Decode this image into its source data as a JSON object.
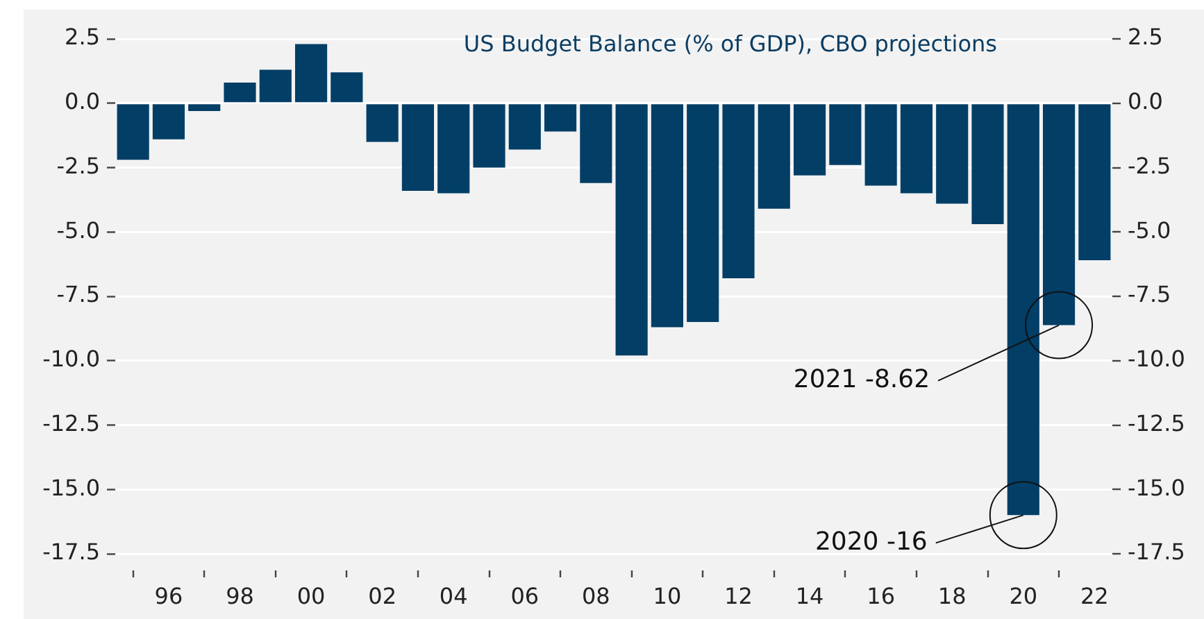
{
  "chart_data": {
    "type": "bar",
    "title": "US Budget Balance (% of GDP), CBO projections",
    "x": [
      1995,
      1996,
      1997,
      1998,
      1999,
      2000,
      2001,
      2002,
      2003,
      2004,
      2005,
      2006,
      2007,
      2008,
      2009,
      2010,
      2011,
      2012,
      2013,
      2014,
      2015,
      2016,
      2017,
      2018,
      2019,
      2020,
      2021,
      2022
    ],
    "values": [
      -2.2,
      -1.4,
      -0.3,
      0.8,
      1.3,
      2.3,
      1.2,
      -1.5,
      -3.4,
      -3.5,
      -2.5,
      -1.8,
      -1.1,
      -3.1,
      -9.8,
      -8.7,
      -8.5,
      -6.8,
      -4.1,
      -2.8,
      -2.4,
      -3.2,
      -3.5,
      -3.9,
      -4.7,
      -16,
      -8.62,
      -6.1
    ],
    "color": "#023e66",
    "xlim": [
      1994.5,
      2022.5
    ],
    "xticks": [
      {
        "value": 1996,
        "label": "96"
      },
      {
        "value": 1998,
        "label": "98"
      },
      {
        "value": 2000,
        "label": "00"
      },
      {
        "value": 2002,
        "label": "02"
      },
      {
        "value": 2004,
        "label": "04"
      },
      {
        "value": 2006,
        "label": "06"
      },
      {
        "value": 2008,
        "label": "08"
      },
      {
        "value": 2010,
        "label": "10"
      },
      {
        "value": 2012,
        "label": "12"
      },
      {
        "value": 2014,
        "label": "14"
      },
      {
        "value": 2016,
        "label": "16"
      },
      {
        "value": 2018,
        "label": "18"
      },
      {
        "value": 2020,
        "label": "20"
      },
      {
        "value": 2022,
        "label": "22"
      }
    ],
    "ylim": [
      -17.5,
      2.5
    ],
    "yticks": [
      2.5,
      {
        "value": 0,
        "label": "0.0"
      },
      -2.5,
      {
        "value": -5,
        "label": "-5.0"
      },
      -7.5,
      {
        "value": -10,
        "label": "-10.0"
      },
      -12.5,
      {
        "value": -15,
        "label": "-15.0"
      },
      -17.5
    ],
    "y2lim": [
      -17.5,
      2.5
    ],
    "y2ticks": [
      2.5,
      {
        "value": 0,
        "label": "0.0"
      },
      -2.5,
      {
        "value": -5,
        "label": "-5.0"
      },
      -7.5,
      {
        "value": -10,
        "label": "-10.0"
      },
      -12.5,
      {
        "value": -15,
        "label": "-15.0"
      },
      -17.5
    ],
    "grid": "y",
    "annotations": [
      {
        "text": "2021 -8.62",
        "x": 2021,
        "y": -8.62
      },
      {
        "text": "2020 -16",
        "x": 2020,
        "y": -16
      }
    ]
  }
}
